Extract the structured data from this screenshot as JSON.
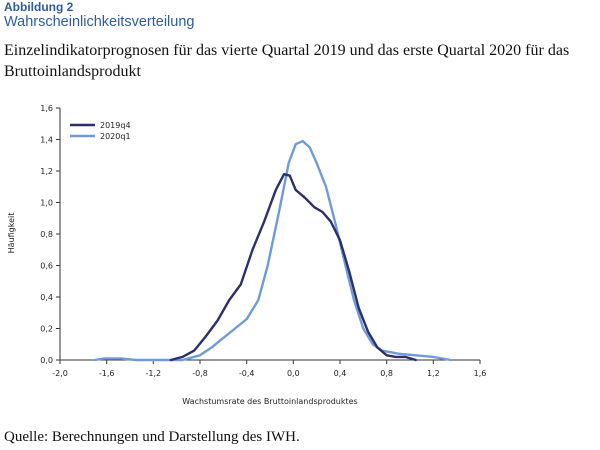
{
  "figure": {
    "label": "Abbildung 2",
    "subtitle": "Wahrscheinlichkeitsverteilung",
    "title": "Einzelindikatorprognosen für das vierte Quartal 2019 und das erste Quartal 2020 für das Bruttoinlandsprodukt",
    "source": "Quelle: Berechnungen und Darstellung des IWH."
  },
  "chart_data": {
    "type": "line",
    "xlabel": "Wachstumsrate des Bruttoinlandsproduktes",
    "ylabel": "Häufigkeit",
    "xlim": [
      -2.0,
      1.6
    ],
    "ylim": [
      0,
      1.6
    ],
    "xticks": [
      -2.0,
      -1.6,
      -1.2,
      -0.8,
      -0.4,
      0.0,
      0.4,
      0.8,
      1.2,
      1.6
    ],
    "xtick_labels": [
      "-2,0",
      "-1,6",
      "-1,2",
      "-0,8",
      "-0,4",
      "0,0",
      "0,4",
      "0,8",
      "1,2",
      "1,6"
    ],
    "yticks": [
      0,
      0.2,
      0.4,
      0.6,
      0.8,
      1.0,
      1.2,
      1.4,
      1.6
    ],
    "ytick_labels": [
      "0,0",
      "0,2",
      "0,4",
      "0,6",
      "0,8",
      "1,0",
      "1,2",
      "1,4",
      "1,6"
    ],
    "grid": false,
    "legend": "top-left",
    "series": [
      {
        "name": "2019q4",
        "color": "#2b2f6e",
        "points": [
          [
            -1.05,
            0.0
          ],
          [
            -0.95,
            0.02
          ],
          [
            -0.85,
            0.06
          ],
          [
            -0.75,
            0.15
          ],
          [
            -0.65,
            0.25
          ],
          [
            -0.55,
            0.38
          ],
          [
            -0.45,
            0.48
          ],
          [
            -0.35,
            0.7
          ],
          [
            -0.25,
            0.88
          ],
          [
            -0.15,
            1.08
          ],
          [
            -0.08,
            1.18
          ],
          [
            -0.03,
            1.17
          ],
          [
            0.02,
            1.08
          ],
          [
            0.1,
            1.03
          ],
          [
            0.18,
            0.97
          ],
          [
            0.25,
            0.94
          ],
          [
            0.32,
            0.88
          ],
          [
            0.4,
            0.76
          ],
          [
            0.48,
            0.56
          ],
          [
            0.56,
            0.33
          ],
          [
            0.64,
            0.18
          ],
          [
            0.72,
            0.08
          ],
          [
            0.8,
            0.03
          ],
          [
            0.88,
            0.02
          ],
          [
            0.96,
            0.02
          ],
          [
            1.05,
            0.0
          ]
        ]
      },
      {
        "name": "2020q1",
        "color": "#6f9bd8",
        "points": [
          [
            -1.7,
            0.0
          ],
          [
            -1.62,
            0.01
          ],
          [
            -1.48,
            0.01
          ],
          [
            -1.35,
            0.0
          ],
          [
            -0.95,
            0.0
          ],
          [
            -0.8,
            0.03
          ],
          [
            -0.7,
            0.08
          ],
          [
            -0.6,
            0.14
          ],
          [
            -0.5,
            0.2
          ],
          [
            -0.4,
            0.26
          ],
          [
            -0.3,
            0.38
          ],
          [
            -0.22,
            0.6
          ],
          [
            -0.12,
            0.95
          ],
          [
            -0.04,
            1.25
          ],
          [
            0.02,
            1.37
          ],
          [
            0.08,
            1.39
          ],
          [
            0.14,
            1.35
          ],
          [
            0.2,
            1.25
          ],
          [
            0.28,
            1.1
          ],
          [
            0.36,
            0.87
          ],
          [
            0.44,
            0.62
          ],
          [
            0.52,
            0.38
          ],
          [
            0.6,
            0.2
          ],
          [
            0.68,
            0.1
          ],
          [
            0.76,
            0.06
          ],
          [
            0.9,
            0.04
          ],
          [
            1.05,
            0.03
          ],
          [
            1.2,
            0.02
          ],
          [
            1.35,
            0.0
          ]
        ]
      }
    ]
  }
}
